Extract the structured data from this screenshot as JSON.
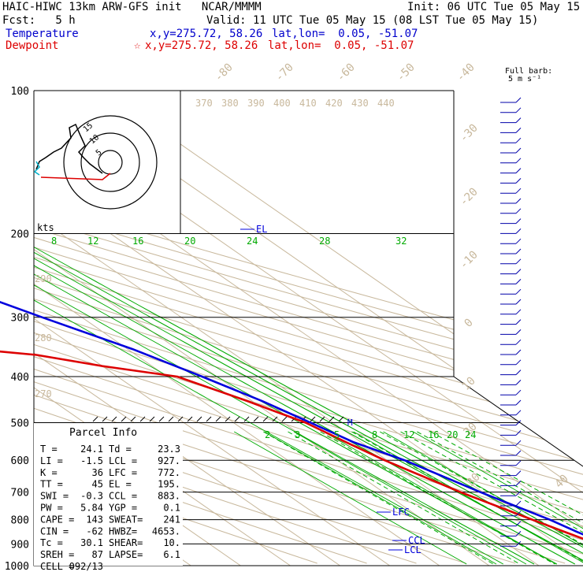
{
  "header": {
    "title": "HAIC-HIWC 13km ARW-GFS init   NCAR/MMMM",
    "init": "Init: 06 UTC Tue 05 May 15",
    "fcst": "Fcst:   5 h",
    "valid": "Valid: 11 UTC Tue 05 May 15 (08 LST Tue 05 May 15)",
    "temperature": {
      "label": "Temperature",
      "xy": "x,y=275.72, 58.26",
      "latlon": "lat,lon=  0.05, -51.07"
    },
    "dewpoint": {
      "label": "Dewpoint",
      "star": "☆",
      "xy": "x,y=275.72, 58.26",
      "latlon": "lat,lon=  0.05, -51.07"
    }
  },
  "colors": {
    "temperature": "#0000dd",
    "dewpoint": "#dd0000",
    "isotherm": "#c8b89c",
    "mixing_ratio": "#00aa00",
    "hodo_wind": "#000000",
    "hodo_cyan": "#00b0c8"
  },
  "barb_label": [
    "Full barb:",
    "5 m s⁻¹"
  ],
  "hodograph": {
    "units": "kts",
    "ring_labels": [
      "5",
      "10",
      "15"
    ]
  },
  "parcel_info": {
    "title": "Parcel Info",
    "rows": [
      [
        "T  =",
        "24.1",
        "Td =",
        "23.3"
      ],
      [
        "LI =",
        "-1.5",
        "LCL =",
        "927."
      ],
      [
        "K  =",
        "36",
        "LFC =",
        "772."
      ],
      [
        "TT =",
        "45",
        "EL  =",
        "195."
      ],
      [
        "SWI =",
        "-0.3",
        "CCL =",
        "883."
      ],
      [
        "PW =",
        "5.84",
        "YGP =",
        "0.1"
      ],
      [
        "CAPE =",
        "143",
        "SWEAT=",
        "241"
      ],
      [
        "CIN =",
        "-62",
        "HWBZ=",
        "4653."
      ],
      [
        "Tc =",
        "30.1",
        "SHEAR=",
        "10."
      ],
      [
        "SREH =",
        "87",
        "LAPSE=",
        "6.1"
      ],
      [
        "CELL =",
        "092/13",
        "",
        ""
      ]
    ]
  },
  "level_labels": {
    "el": "EL",
    "lfc": "LFC",
    "ccl": "CCL",
    "lcl": "LCL",
    "m": "M"
  },
  "chart_data": {
    "type": "line",
    "title": "Skew-T log-P",
    "pressure_levels": [
      100,
      200,
      300,
      400,
      500,
      600,
      700,
      800,
      900,
      1000
    ],
    "isotherm_labels": [
      "-80",
      "-70",
      "-60",
      "-50",
      "-40",
      "-30",
      "-20",
      "-10",
      "0",
      "10",
      "20",
      "30",
      "40"
    ],
    "theta_labels": [
      "370",
      "380",
      "390",
      "400",
      "410",
      "420",
      "430",
      "440"
    ],
    "theta_left_labels": [
      "290",
      "280",
      "270"
    ],
    "mixing_ratio_upper": [
      "8",
      "12",
      "16",
      "20",
      "24",
      "28",
      "32"
    ],
    "mixing_ratio_lower": [
      "2",
      "3",
      "5",
      "8",
      "12",
      "16",
      "20",
      "24"
    ],
    "series": [
      {
        "name": "Temperature",
        "color": "#0000dd",
        "points": [
          [
            1000,
            24.1
          ],
          [
            950,
            22.5
          ],
          [
            925,
            21.5
          ],
          [
            900,
            19.8
          ],
          [
            850,
            17.5
          ],
          [
            800,
            15.5
          ],
          [
            700,
            9.5
          ],
          [
            600,
            3.5
          ],
          [
            550,
            -1.5
          ],
          [
            500,
            -4.5
          ],
          [
            450,
            -8
          ],
          [
            400,
            -13
          ],
          [
            350,
            -19
          ],
          [
            300,
            -28
          ],
          [
            250,
            -38
          ],
          [
            200,
            -51
          ],
          [
            175,
            -59
          ],
          [
            150,
            -66
          ],
          [
            125,
            -73
          ],
          [
            110,
            -74
          ],
          [
            100,
            -73
          ]
        ]
      },
      {
        "name": "Dewpoint",
        "color": "#dd0000",
        "points": [
          [
            1000,
            23.3
          ],
          [
            975,
            22
          ],
          [
            950,
            20
          ],
          [
            925,
            19.3
          ],
          [
            900,
            18
          ],
          [
            850,
            15
          ],
          [
            800,
            12
          ],
          [
            700,
            5.5
          ],
          [
            600,
            -0.5
          ],
          [
            550,
            -3
          ],
          [
            500,
            -5.5
          ],
          [
            450,
            -11
          ],
          [
            400,
            -18
          ],
          [
            380,
            -30
          ],
          [
            360,
            -40
          ],
          [
            350,
            -51
          ],
          [
            320,
            -52
          ],
          [
            300,
            -53
          ],
          [
            280,
            -52
          ],
          [
            260,
            -57
          ],
          [
            230,
            -62
          ],
          [
            200,
            -64
          ],
          [
            185,
            -70
          ],
          [
            160,
            -78
          ],
          [
            140,
            -84
          ],
          [
            120,
            -84
          ],
          [
            100,
            -78
          ]
        ]
      }
    ],
    "xlabel": "",
    "ylabel": ""
  }
}
